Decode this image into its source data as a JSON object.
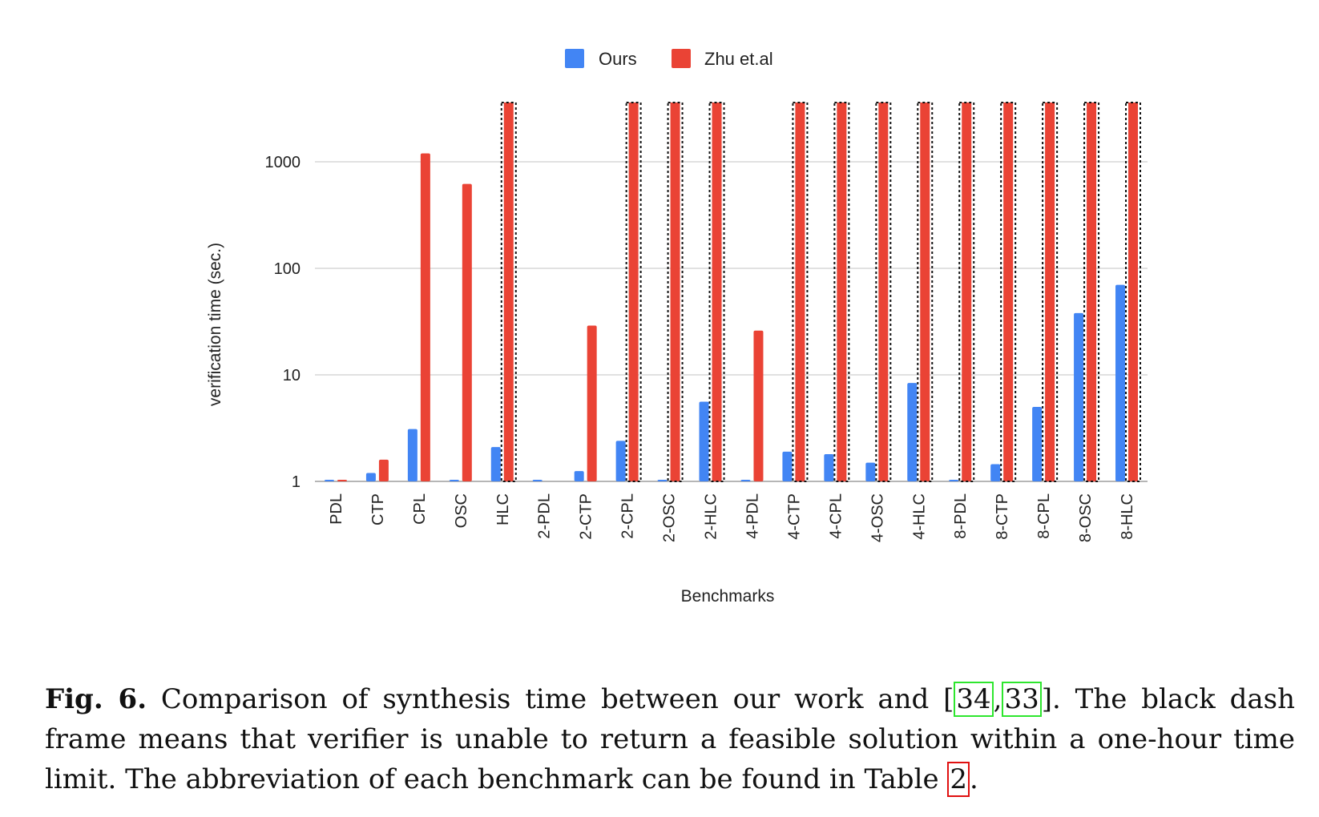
{
  "chart_data": {
    "type": "bar",
    "xlabel": "Benchmarks",
    "ylabel": "verification time (sec.)",
    "yscale": "log",
    "ylim": [
      1,
      4000
    ],
    "yticks": [
      {
        "value": 1,
        "label": "1"
      },
      {
        "value": 10,
        "label": "10"
      },
      {
        "value": 100,
        "label": "100"
      },
      {
        "value": 1000,
        "label": "1000"
      }
    ],
    "grid": true,
    "legend_position": "top-center",
    "categories": [
      "PDL",
      "CTP",
      "CPL",
      "OSC",
      "HLC",
      "2-PDL",
      "2-CTP",
      "2-CPL",
      "2-OSC",
      "2-HLC",
      "4-PDL",
      "4-CTP",
      "4-CPL",
      "4-OSC",
      "4-HLC",
      "8-PDL",
      "8-CTP",
      "8-CPL",
      "8-OSC",
      "8-HLC"
    ],
    "series": [
      {
        "name": "Ours",
        "color": "#4285f4",
        "values": [
          1.0,
          1.2,
          3.1,
          1.0,
          2.1,
          1.03,
          1.25,
          2.4,
          1.0,
          5.6,
          1.0,
          1.9,
          1.8,
          1.5,
          8.4,
          1.0,
          1.45,
          5.0,
          38,
          70
        ]
      },
      {
        "name": "Zhu et.al",
        "color": "#ea4335",
        "values": [
          1.0,
          1.6,
          1200,
          620,
          null,
          null,
          29,
          null,
          null,
          null,
          26,
          null,
          null,
          null,
          null,
          null,
          null,
          null,
          null,
          null
        ],
        "timeout_categories": [
          "HLC",
          "2-CPL",
          "2-OSC",
          "2-HLC",
          "4-CTP",
          "4-CPL",
          "4-OSC",
          "4-HLC",
          "8-PDL",
          "8-CTP",
          "8-CPL",
          "8-OSC",
          "8-HLC"
        ]
      }
    ]
  },
  "caption": {
    "label": "Fig. 6.",
    "text_1": " Comparison of synthesis time between our work and [",
    "cite_a": "34",
    "cite_sep": ",",
    "cite_b": "33",
    "text_2": "]. The black dash frame means that verifier is unable to return a feasible solution within a one-hour time limit. The abbreviation of each benchmark can be found in Table ",
    "table_ref": "2",
    "text_3": "."
  }
}
